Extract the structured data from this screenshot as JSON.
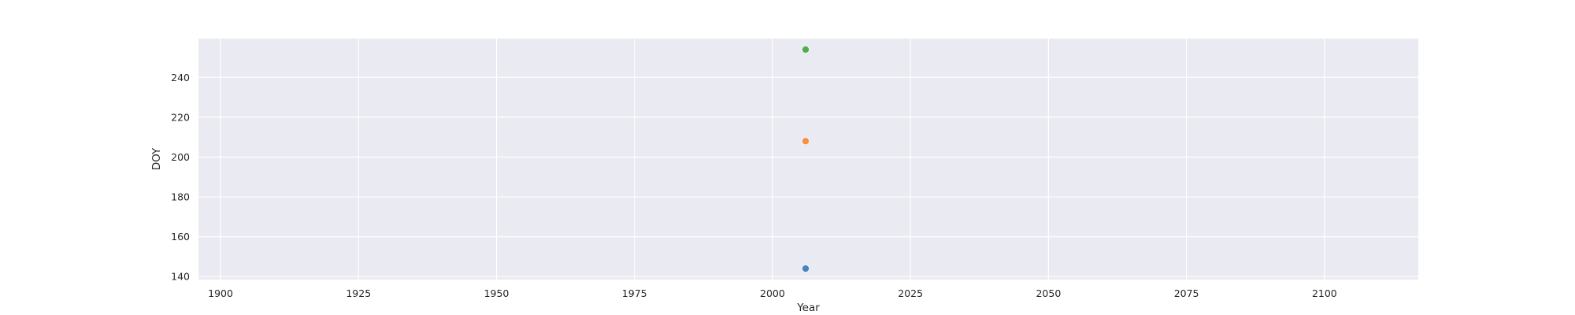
{
  "chart_data": {
    "type": "scatter",
    "title": "",
    "xlabel": "Year",
    "ylabel": "DOY",
    "xlim": [
      1896,
      2117
    ],
    "ylim": [
      138.5,
      259.5
    ],
    "x_ticks": [
      1900,
      1925,
      1950,
      1975,
      2000,
      2025,
      2050,
      2075,
      2100
    ],
    "y_ticks": [
      140,
      160,
      180,
      200,
      220,
      240
    ],
    "grid": true,
    "legend": "none",
    "colors": {
      "background": "#eaeaf2",
      "grid": "#ffffff",
      "text": "#262626"
    },
    "series": [
      {
        "color": "#3c7dbe",
        "points": [
          {
            "x": 2006,
            "y": 144
          }
        ]
      },
      {
        "color": "#f58b32",
        "points": [
          {
            "x": 2006,
            "y": 208
          }
        ]
      },
      {
        "color": "#47a94a",
        "points": [
          {
            "x": 2006,
            "y": 254
          }
        ]
      }
    ]
  }
}
